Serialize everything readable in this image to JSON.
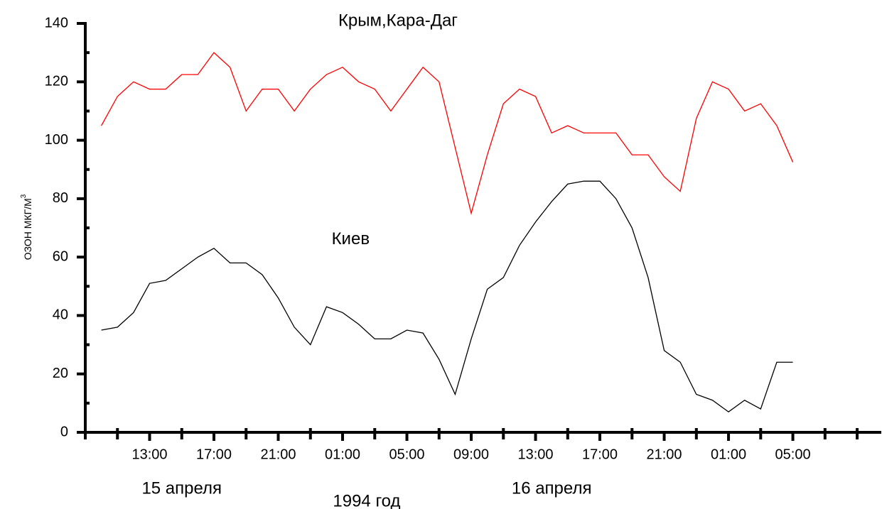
{
  "chart_data": {
    "type": "line",
    "title": "Крым,Кара-Даг",
    "y_label": "ОЗОН МКГ/М",
    "y_label_superscript": "3",
    "x": [
      10,
      11,
      12,
      13,
      14,
      15,
      16,
      17,
      18,
      19,
      20,
      21,
      22,
      23,
      24,
      25,
      26,
      27,
      28,
      29,
      30,
      31,
      32,
      33,
      34,
      35,
      36,
      37,
      38,
      39,
      40,
      41,
      42,
      43,
      44,
      45,
      46,
      47,
      48,
      49,
      50,
      51,
      52,
      53
    ],
    "series": [
      {
        "name": "Крым,Кара-Даг",
        "color": "#ff0000",
        "values": [
          105,
          115,
          120,
          117.5,
          117.5,
          122.5,
          122.5,
          130,
          125,
          110,
          117.5,
          117.5,
          110,
          117.5,
          122.5,
          125,
          120,
          117.5,
          110,
          117.5,
          125,
          120,
          97.5,
          75,
          95,
          112.5,
          117.5,
          115,
          102.5,
          105,
          102.5,
          102.5,
          102.5,
          95,
          95,
          87.5,
          82.5,
          107.5,
          120,
          117.5,
          110,
          112.5,
          105,
          92.5
        ]
      },
      {
        "name": "Киев",
        "color": "#000000",
        "values": [
          35,
          36,
          41,
          51,
          52,
          56,
          60,
          63,
          58,
          58,
          54,
          46,
          36,
          30,
          43,
          41,
          37,
          32,
          32,
          35,
          34,
          25,
          13,
          32,
          49,
          53,
          64,
          72,
          79,
          85,
          86,
          86,
          80,
          70,
          53,
          28,
          24,
          13,
          11,
          7,
          11,
          8,
          24,
          24
        ]
      }
    ],
    "xlim": [
      9,
      58.5
    ],
    "xticks": [
      {
        "value": 13,
        "label": "13:00"
      },
      {
        "value": 17,
        "label": "17:00"
      },
      {
        "value": 21,
        "label": "21:00"
      },
      {
        "value": 25,
        "label": "01:00"
      },
      {
        "value": 29,
        "label": "05:00"
      },
      {
        "value": 33,
        "label": "09:00"
      },
      {
        "value": 37,
        "label": "13:00"
      },
      {
        "value": 41,
        "label": "17:00"
      },
      {
        "value": 45,
        "label": "21:00"
      },
      {
        "value": 49,
        "label": "01:00"
      },
      {
        "value": 53,
        "label": "05:00"
      }
    ],
    "xticks_minor": [
      9,
      11,
      15,
      19,
      23,
      27,
      31,
      35,
      39,
      43,
      47,
      51,
      55,
      57
    ],
    "ylim": [
      0,
      140
    ],
    "yticks": [
      0,
      20,
      40,
      60,
      80,
      100,
      120,
      140
    ],
    "yticks_minor": [
      10,
      30,
      50,
      70,
      90,
      110,
      130
    ],
    "annotations": [
      {
        "text": "Киев",
        "x": 25.5,
        "y": 66
      },
      {
        "text": "15 апреля",
        "x": 15,
        "y": -19
      },
      {
        "text": "1994 год",
        "x": 26.5,
        "y": -25
      },
      {
        "text": "16 апреля",
        "x": 38,
        "y": -19
      }
    ]
  }
}
